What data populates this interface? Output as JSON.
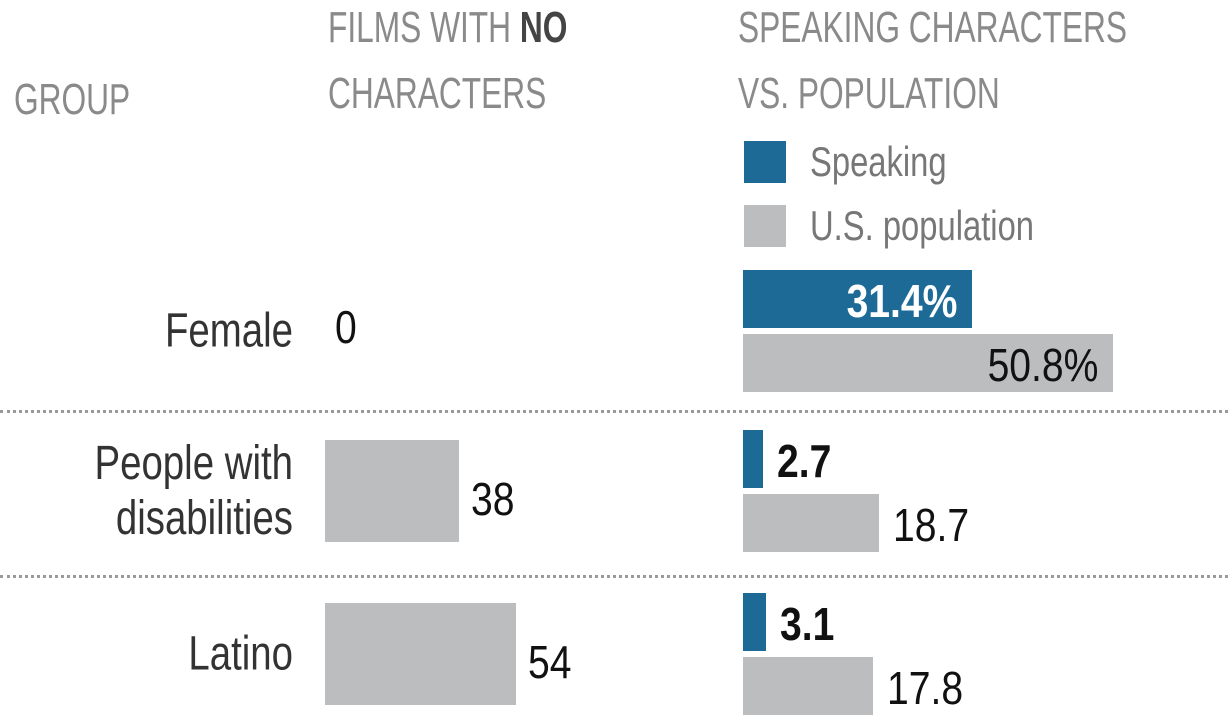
{
  "group_header": "GROUP",
  "chart_data": [
    {
      "type": "bar",
      "title": {
        "line1": "FILMS WITH",
        "bold": "NO",
        "line2": "CHARACTERS"
      },
      "categories": [
        "Female",
        "People with disabilities",
        "Latino"
      ],
      "values": [
        0,
        38,
        54
      ],
      "color": "#bcbdbf"
    },
    {
      "type": "bar",
      "title": {
        "line1": "SPEAKING CHARACTERS",
        "line2": "VS. POPULATION"
      },
      "series": [
        {
          "name": "Speaking",
          "color": "#1d6a96",
          "values": [
            31.4,
            2.7,
            3.1
          ],
          "value_labels": [
            "31.4%",
            "2.7",
            "3.1"
          ]
        },
        {
          "name": "U.S. population",
          "color": "#bcbdbf",
          "values": [
            50.8,
            18.7,
            17.8
          ],
          "value_labels": [
            "50.8%",
            "18.7",
            "17.8"
          ]
        }
      ]
    }
  ]
}
